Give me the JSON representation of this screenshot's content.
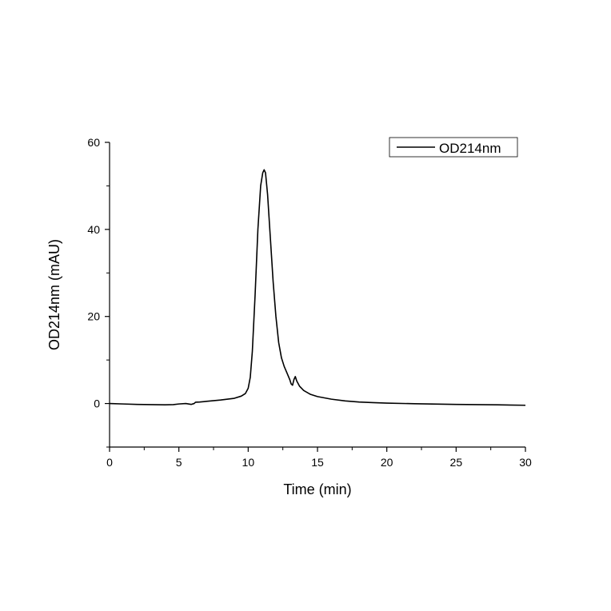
{
  "chart_data": {
    "type": "line",
    "xlabel": "Time (min)",
    "ylabel": "OD214nm (mAU)",
    "xlim": [
      0,
      30
    ],
    "ylim": [
      -10,
      60
    ],
    "x_ticks": [
      0,
      5,
      10,
      15,
      20,
      25,
      30
    ],
    "y_ticks": [
      0,
      20,
      40,
      60
    ],
    "x_tick_labels": [
      "0",
      "5",
      "10",
      "15",
      "20",
      "25",
      "30"
    ],
    "y_tick_labels": [
      "0",
      "20",
      "40",
      "60"
    ],
    "grid": false,
    "legend_position": "top-right",
    "series": [
      {
        "name": "OD214nm",
        "color": "#000000",
        "points": [
          [
            0,
            0.0
          ],
          [
            1,
            -0.1
          ],
          [
            2,
            -0.2
          ],
          [
            3,
            -0.25
          ],
          [
            4,
            -0.3
          ],
          [
            4.6,
            -0.25
          ],
          [
            5.0,
            -0.1
          ],
          [
            5.5,
            0.0
          ],
          [
            5.9,
            -0.2
          ],
          [
            6.1,
            0.0
          ],
          [
            6.2,
            0.3
          ],
          [
            6.5,
            0.35
          ],
          [
            7,
            0.5
          ],
          [
            8,
            0.8
          ],
          [
            9,
            1.2
          ],
          [
            9.5,
            1.7
          ],
          [
            9.8,
            2.3
          ],
          [
            10.0,
            3.5
          ],
          [
            10.15,
            6
          ],
          [
            10.3,
            12
          ],
          [
            10.5,
            25
          ],
          [
            10.7,
            40
          ],
          [
            10.9,
            50
          ],
          [
            11.05,
            53
          ],
          [
            11.15,
            53.7
          ],
          [
            11.25,
            53
          ],
          [
            11.4,
            48
          ],
          [
            11.6,
            38
          ],
          [
            11.8,
            28
          ],
          [
            12.0,
            20
          ],
          [
            12.2,
            14
          ],
          [
            12.4,
            10.5
          ],
          [
            12.6,
            8.5
          ],
          [
            12.8,
            7
          ],
          [
            13.0,
            5.5
          ],
          [
            13.1,
            4.5
          ],
          [
            13.2,
            4.2
          ],
          [
            13.3,
            5.5
          ],
          [
            13.4,
            6.2
          ],
          [
            13.5,
            5.2
          ],
          [
            13.7,
            4
          ],
          [
            14,
            3
          ],
          [
            14.5,
            2.1
          ],
          [
            15,
            1.6
          ],
          [
            16,
            1.0
          ],
          [
            17,
            0.6
          ],
          [
            18,
            0.35
          ],
          [
            19,
            0.2
          ],
          [
            20,
            0.1
          ],
          [
            22,
            -0.05
          ],
          [
            25,
            -0.2
          ],
          [
            28,
            -0.3
          ],
          [
            30,
            -0.4
          ]
        ]
      }
    ]
  }
}
